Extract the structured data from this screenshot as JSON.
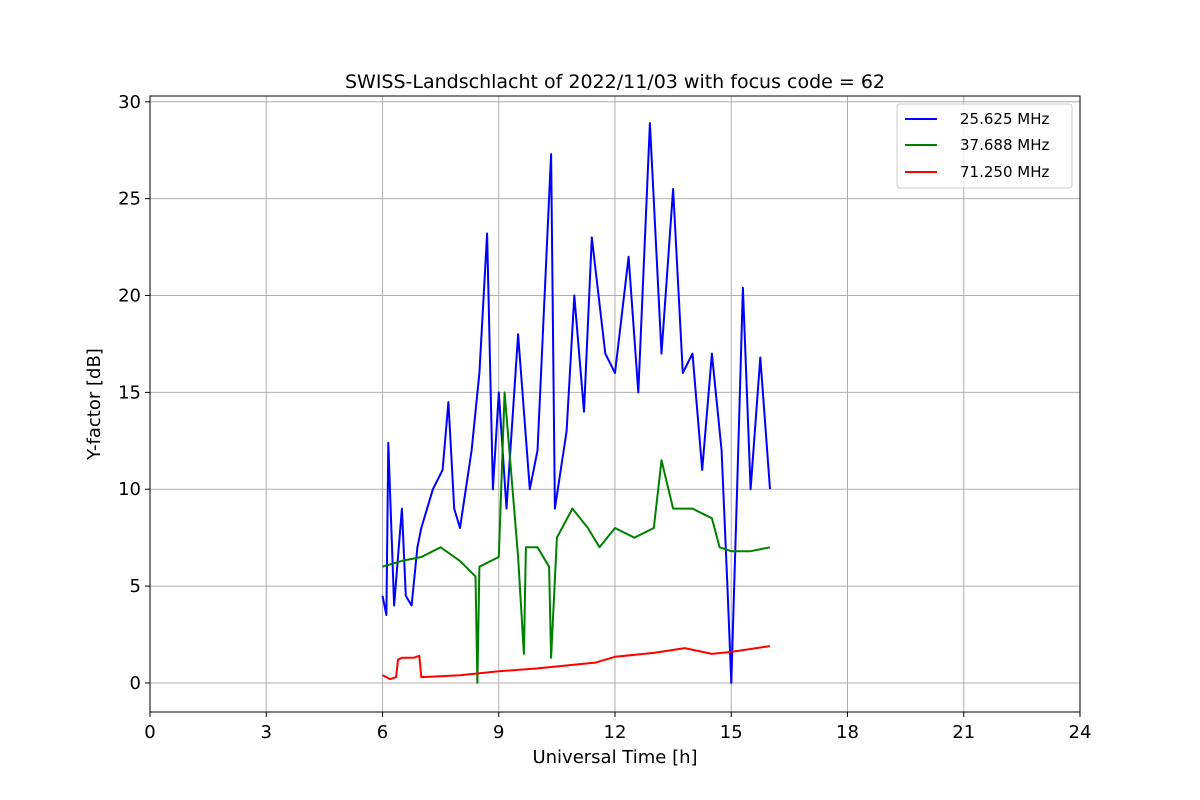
{
  "chart_data": {
    "type": "line",
    "title": "SWISS-Landschlacht of 2022/11/03 with focus code = 62",
    "xlabel": "Universal Time [h]",
    "ylabel": "Y-factor [dB]",
    "xlim": [
      0,
      24
    ],
    "ylim": [
      -1.5,
      30.3
    ],
    "xticks": [
      0,
      3,
      6,
      9,
      12,
      15,
      18,
      21,
      24
    ],
    "yticks": [
      0,
      5,
      10,
      15,
      20,
      25,
      30
    ],
    "grid": true,
    "legend_position": "top-right",
    "series": [
      {
        "name": "25.625 MHz",
        "color": "#0000ff",
        "x": [
          6.0,
          6.1,
          6.15,
          6.3,
          6.5,
          6.6,
          6.75,
          6.9,
          7.0,
          7.3,
          7.55,
          7.7,
          7.85,
          8.0,
          8.3,
          8.5,
          8.7,
          8.85,
          9.0,
          9.2,
          9.5,
          9.8,
          10.0,
          10.35,
          10.45,
          10.75,
          10.95,
          11.2,
          11.4,
          11.75,
          12.0,
          12.35,
          12.6,
          12.9,
          13.2,
          13.5,
          13.75,
          14.0,
          14.25,
          14.5,
          14.75,
          14.9,
          15.0,
          15.15,
          15.3,
          15.5,
          15.75,
          16.0
        ],
        "y": [
          4.5,
          3.5,
          12.4,
          4.0,
          9.0,
          4.5,
          4.0,
          7.0,
          8.0,
          10.0,
          11.0,
          14.5,
          9.0,
          8.0,
          12.0,
          16.0,
          23.2,
          10.0,
          15.0,
          9.0,
          18.0,
          10.0,
          12.0,
          27.3,
          9.0,
          13.0,
          20.0,
          14.0,
          23.0,
          17.0,
          16.0,
          22.0,
          15.0,
          28.9,
          17.0,
          25.5,
          16.0,
          17.0,
          11.0,
          17.0,
          12.0,
          5.0,
          0.0,
          10.0,
          20.4,
          10.0,
          16.8,
          10.0
        ]
      },
      {
        "name": "37.688 MHz",
        "color": "#008000",
        "x": [
          6.0,
          6.5,
          7.0,
          7.5,
          8.0,
          8.4,
          8.45,
          8.5,
          9.0,
          9.15,
          9.5,
          9.65,
          9.7,
          10.0,
          10.3,
          10.35,
          10.5,
          10.9,
          11.3,
          11.6,
          12.0,
          12.5,
          13.0,
          13.2,
          13.5,
          14.0,
          14.5,
          14.7,
          15.0,
          15.5,
          16.0
        ],
        "y": [
          6.0,
          6.3,
          6.5,
          7.0,
          6.3,
          5.5,
          0.0,
          6.0,
          6.5,
          15.0,
          6.5,
          1.5,
          7.0,
          7.0,
          6.0,
          1.3,
          7.5,
          9.0,
          8.0,
          7.0,
          8.0,
          7.5,
          8.0,
          11.5,
          9.0,
          9.0,
          8.5,
          7.0,
          6.8,
          6.8,
          7.0
        ]
      },
      {
        "name": "71.250 MHz",
        "color": "#ff0000",
        "x": [
          6.0,
          6.2,
          6.35,
          6.4,
          6.5,
          6.8,
          6.95,
          7.0,
          7.5,
          8.0,
          9.0,
          10.0,
          11.0,
          11.5,
          12.0,
          13.0,
          13.8,
          14.5,
          15.0,
          16.0
        ],
        "y": [
          0.4,
          0.2,
          0.3,
          1.2,
          1.3,
          1.3,
          1.4,
          0.3,
          0.35,
          0.4,
          0.6,
          0.75,
          0.95,
          1.05,
          1.35,
          1.55,
          1.8,
          1.5,
          1.6,
          1.9
        ]
      }
    ]
  }
}
